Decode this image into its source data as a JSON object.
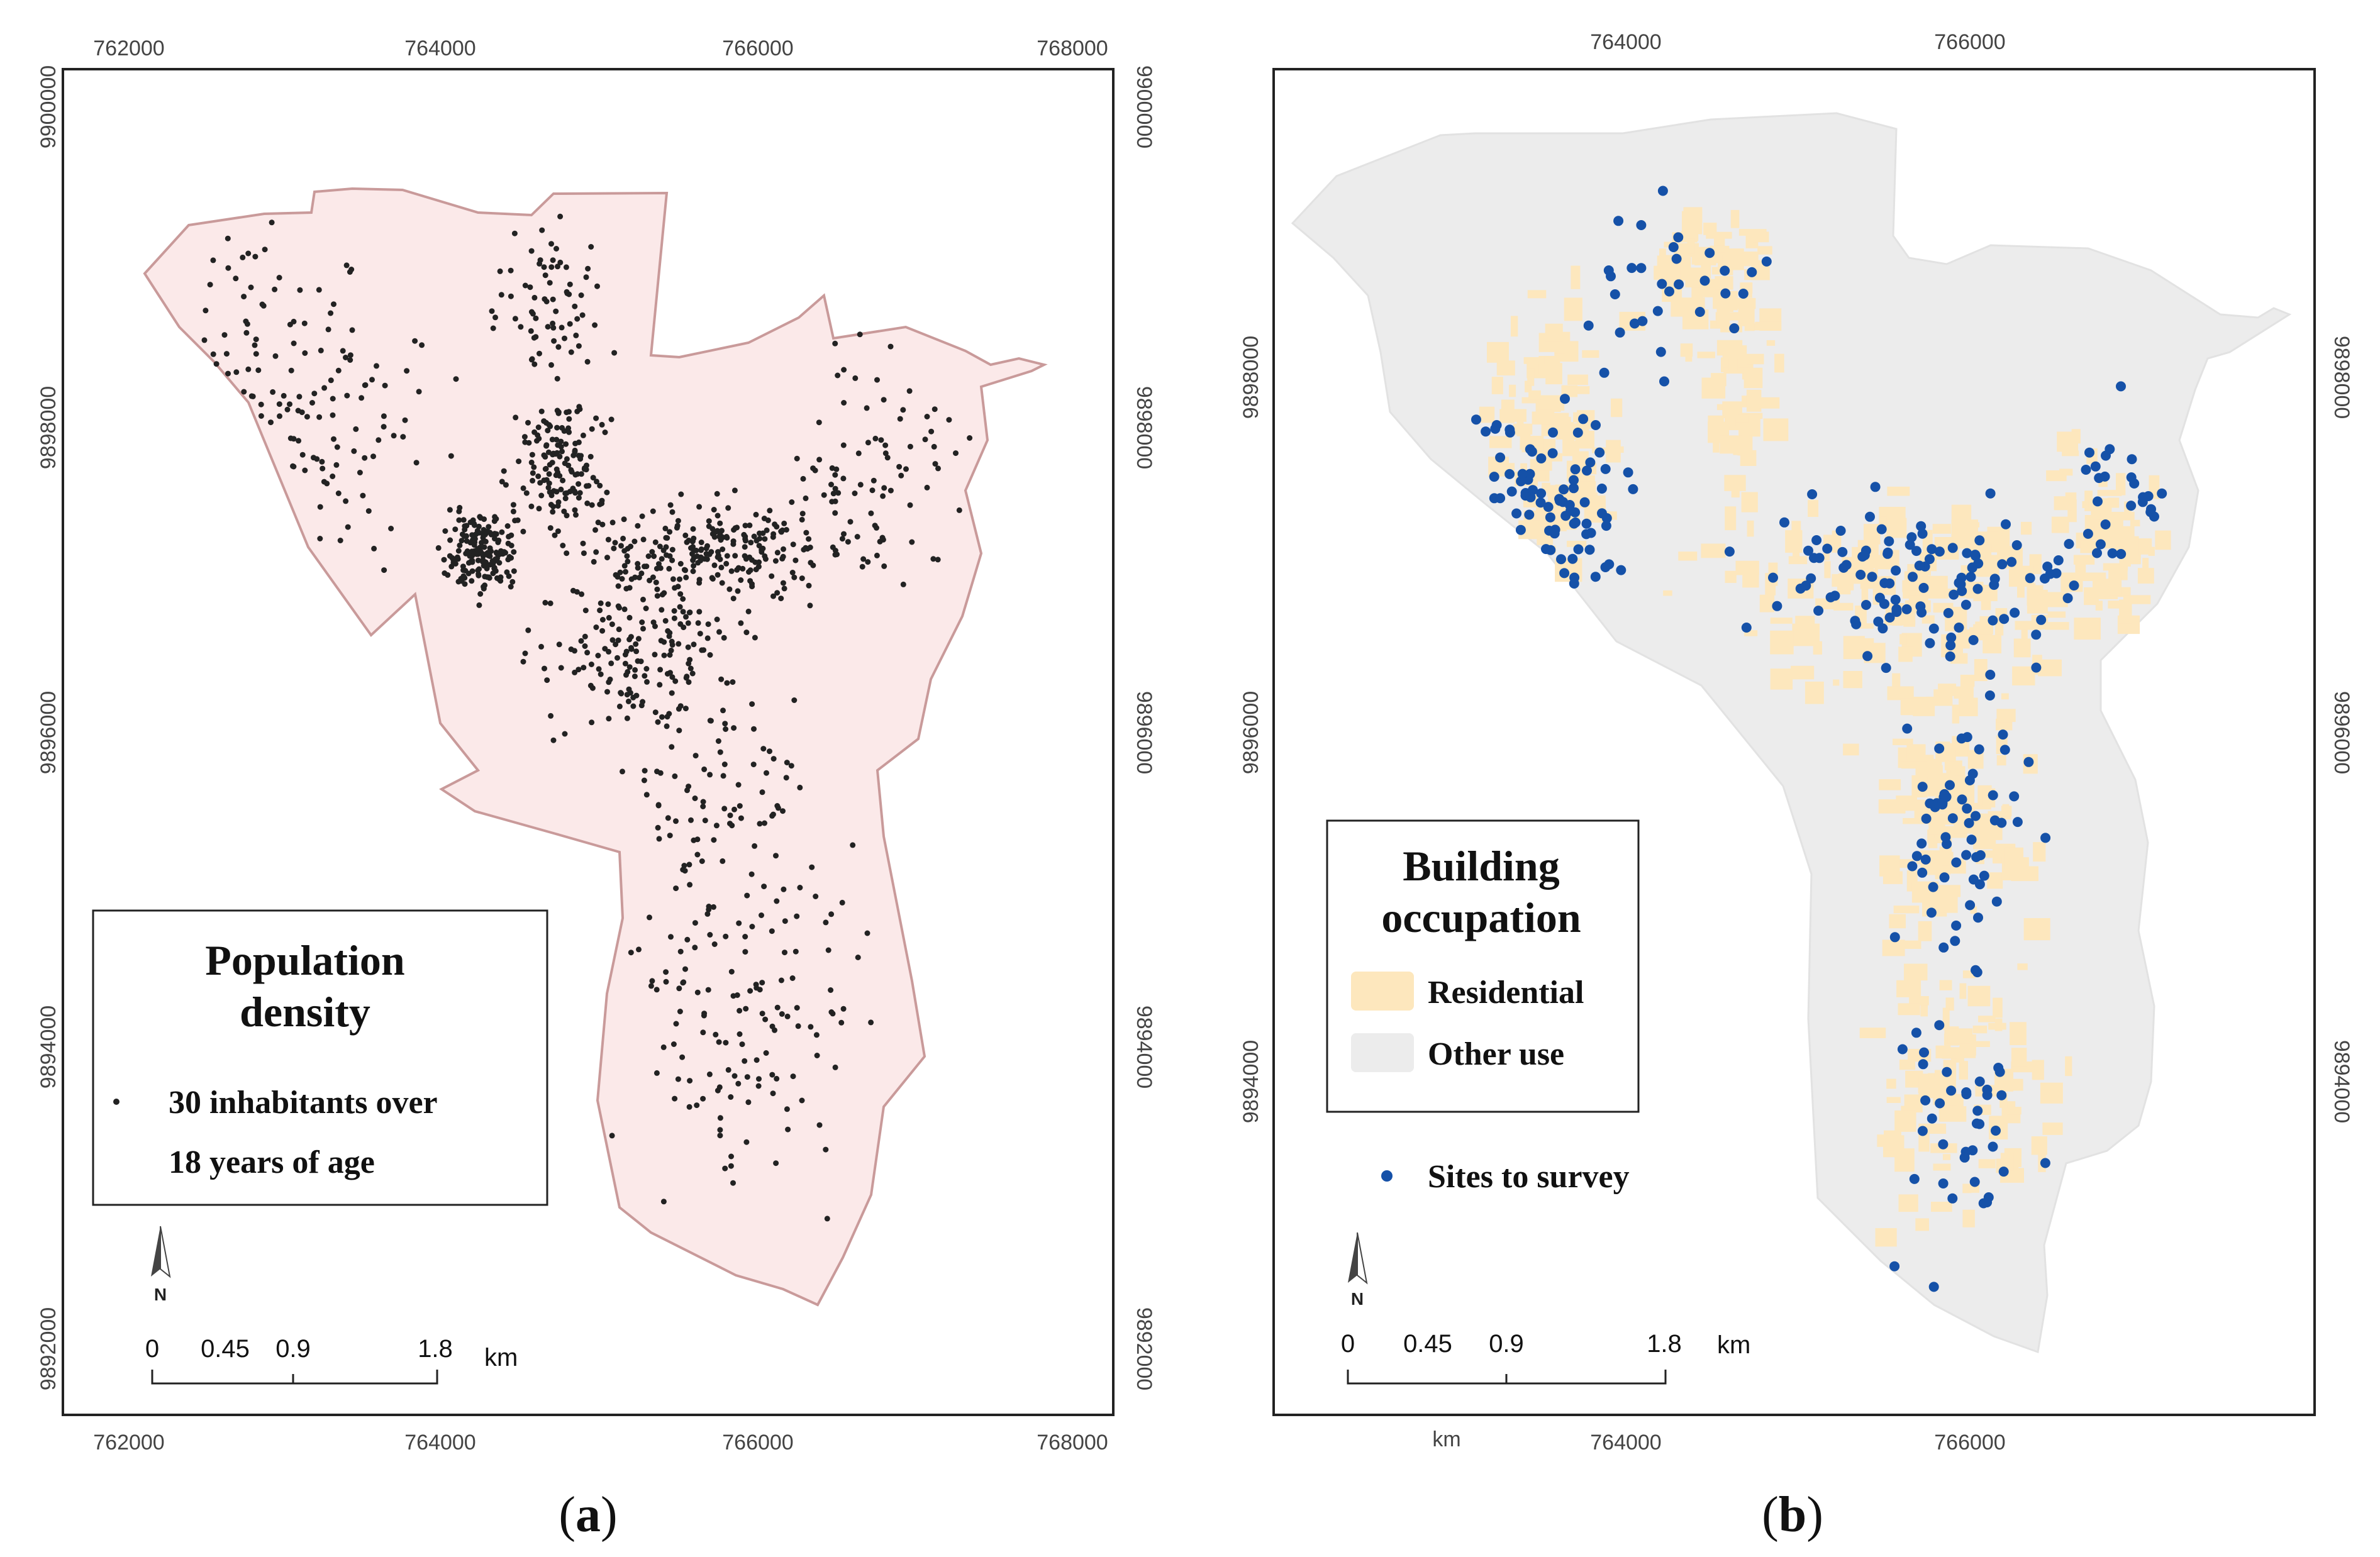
{
  "panels": [
    {
      "id": "a",
      "caption": "(a)",
      "caption_letter": "a",
      "x_ticks": [
        "762000",
        "764000",
        "766000",
        "768000"
      ],
      "y_ticks": [
        "9900000",
        "9898000",
        "9896000",
        "9894000",
        "9892000"
      ],
      "legend": {
        "title_line1": "Population",
        "title_line2": "density",
        "item_line1": "30 inhabitants over",
        "item_line2": "18 years of age"
      },
      "scale": {
        "labels": [
          "0",
          "0.45",
          "0.9",
          "1.8"
        ],
        "unit": "km"
      },
      "north_label": "N",
      "colors": {
        "fill": "#fbe9e9",
        "outline": "#c99a9a",
        "dot": "#222222"
      }
    },
    {
      "id": "b",
      "caption": "(b)",
      "caption_letter": "b",
      "x_ticks": [
        "764000",
        "766000"
      ],
      "y_ticks": [
        "9898000",
        "9896000",
        "9894000"
      ],
      "legend": {
        "title_line1": "Building",
        "title_line2": "occupation",
        "residential": "Residential",
        "other": "Other use",
        "sites": "Sites to survey"
      },
      "scale": {
        "labels": [
          "0",
          "0.45",
          "0.9",
          "1.8"
        ],
        "unit": "km",
        "extra_unit": "km"
      },
      "north_label": "N",
      "colors": {
        "residential": "#fde7bd",
        "other": "#ececec",
        "site": "#1551a8"
      }
    }
  ]
}
